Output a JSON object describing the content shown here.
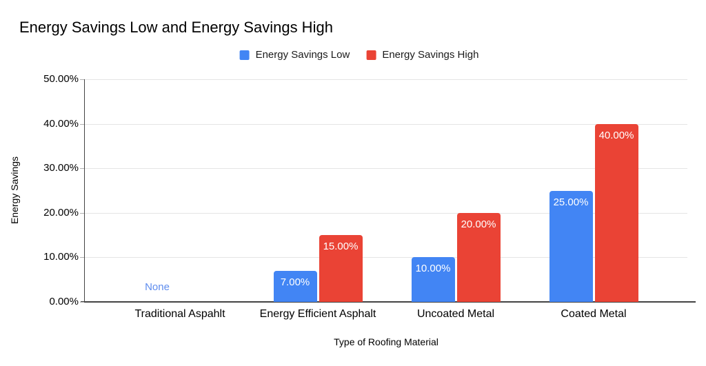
{
  "chart_data": {
    "type": "bar",
    "title": "Energy Savings Low and Energy Savings High",
    "xlabel": "Type of Roofing Material",
    "ylabel": "Energy Savings",
    "categories": [
      "Traditional Aspahlt",
      "Energy Efficient Asphalt",
      "Uncoated Metal",
      "Coated Metal"
    ],
    "series": [
      {
        "name": "Energy Savings Low",
        "color": "#4285F4",
        "values": [
          null,
          7,
          10,
          25
        ],
        "data_labels": [
          "None",
          "7.00%",
          "10.00%",
          "25.00%"
        ]
      },
      {
        "name": "Energy Savings High",
        "color": "#EA4335",
        "values": [
          null,
          15,
          20,
          40
        ],
        "data_labels": [
          null,
          "15.00%",
          "20.00%",
          "40.00%"
        ]
      }
    ],
    "ylim": [
      0,
      50
    ],
    "ytick_values": [
      0,
      10,
      20,
      30,
      40,
      50
    ],
    "ytick_labels": [
      "0.00%",
      "10.00%",
      "20.00%",
      "30.00%",
      "40.00%",
      "50.00%"
    ],
    "null_label_color": "#5E8CEE",
    "bar_label_color": "#FFFFFF",
    "grid": true,
    "legend_position": "top"
  }
}
